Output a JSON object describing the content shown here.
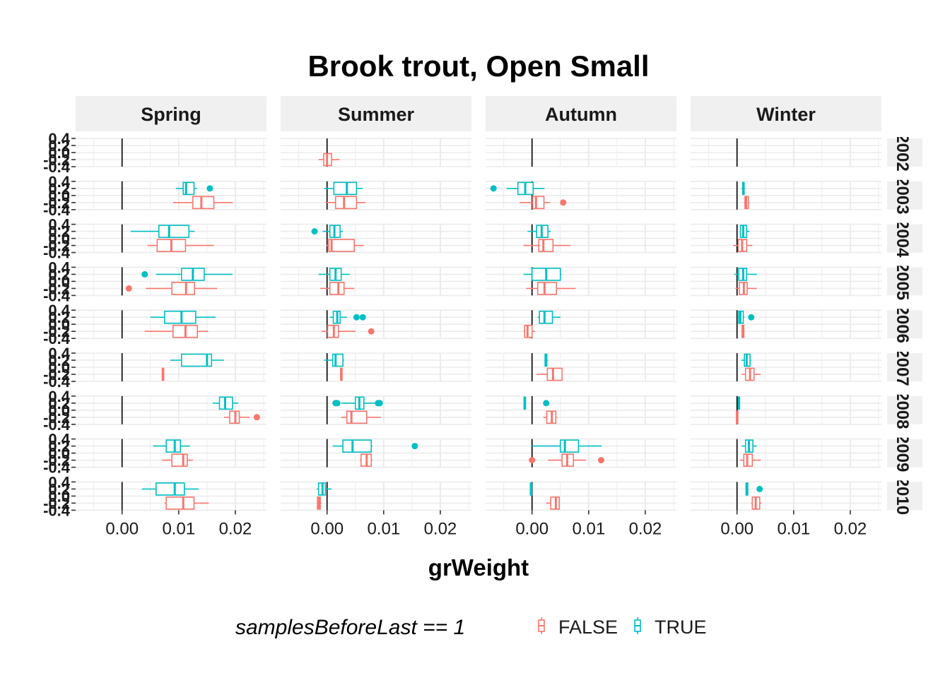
{
  "colors": {
    "false": "#F8766D",
    "true": "#00BFC4",
    "strip": "#F0F0F0",
    "grid": "#EBEBEB"
  },
  "chart_data": {
    "type": "boxplot",
    "title": "Brook trout, Open Small",
    "xlabel": "grWeight",
    "ylabel": "",
    "xlim": [
      -0.0082,
      0.0255
    ],
    "ylim": [
      -0.4,
      0.4
    ],
    "x_ticks": [
      0.0,
      0.01,
      0.02
    ],
    "x_tick_labels": [
      "0.00",
      "0.01",
      "0.02"
    ],
    "y_tick_labels": [
      "0.4",
      "0.2",
      "0.0",
      "-0.2",
      "-0.4"
    ],
    "facet_cols": [
      "Spring",
      "Summer",
      "Autumn",
      "Winter"
    ],
    "facet_rows": [
      "2002",
      "2003",
      "2004",
      "2005",
      "2006",
      "2007",
      "2008",
      "2009",
      "2010"
    ],
    "legend": {
      "title": "samplesBeforeLast == 1",
      "position": "bottom",
      "items": [
        {
          "key": "false",
          "label": "FALSE"
        },
        {
          "key": "true",
          "label": "TRUE"
        }
      ]
    },
    "panels": [
      {
        "row": 0,
        "col": 1,
        "series": "false",
        "stats": [
          -0.0015,
          -0.0006,
          0.0,
          0.0008,
          0.0022
        ],
        "outliers": []
      },
      {
        "row": 1,
        "col": 0,
        "series": "true",
        "stats": [
          0.0095,
          0.0108,
          0.0113,
          0.0127,
          0.0132
        ],
        "outliers": [
          0.0155
        ]
      },
      {
        "row": 1,
        "col": 0,
        "series": "false",
        "stats": [
          0.009,
          0.0125,
          0.014,
          0.0162,
          0.0195
        ],
        "outliers": []
      },
      {
        "row": 1,
        "col": 1,
        "series": "true",
        "stats": [
          -0.0005,
          0.0012,
          0.0035,
          0.0052,
          0.0063
        ],
        "outliers": []
      },
      {
        "row": 1,
        "col": 1,
        "series": "false",
        "stats": [
          -0.0003,
          0.0015,
          0.003,
          0.0052,
          0.0068
        ],
        "outliers": []
      },
      {
        "row": 1,
        "col": 2,
        "series": "true",
        "stats": [
          -0.0045,
          -0.0025,
          -0.0012,
          0.0002,
          0.0022
        ],
        "outliers": [
          -0.0068
        ]
      },
      {
        "row": 1,
        "col": 2,
        "series": "false",
        "stats": [
          -0.0022,
          0.0001,
          0.0007,
          0.0021,
          0.0032
        ],
        "outliers": [
          0.0055
        ]
      },
      {
        "row": 1,
        "col": 3,
        "series": "true",
        "stats": [
          0.0008,
          0.001,
          0.0011,
          0.0012,
          0.0014
        ],
        "outliers": []
      },
      {
        "row": 1,
        "col": 3,
        "series": "false",
        "stats": [
          0.0012,
          0.0014,
          0.0016,
          0.002,
          0.0022
        ],
        "outliers": []
      },
      {
        "row": 2,
        "col": 0,
        "series": "true",
        "stats": [
          0.0015,
          0.0065,
          0.0083,
          0.0118,
          0.0128
        ],
        "outliers": []
      },
      {
        "row": 2,
        "col": 0,
        "series": "false",
        "stats": [
          0.0045,
          0.0062,
          0.0087,
          0.0112,
          0.0162
        ],
        "outliers": []
      },
      {
        "row": 2,
        "col": 1,
        "series": "true",
        "stats": [
          -0.0008,
          0.0005,
          0.0013,
          0.0023,
          0.0028
        ],
        "outliers": [
          -0.0022
        ]
      },
      {
        "row": 2,
        "col": 1,
        "series": "false",
        "stats": [
          -0.0001,
          0.0003,
          0.0008,
          0.0048,
          0.0065
        ],
        "outliers": []
      },
      {
        "row": 2,
        "col": 2,
        "series": "true",
        "stats": [
          -0.0008,
          0.0008,
          0.0017,
          0.0028,
          0.0033
        ],
        "outliers": []
      },
      {
        "row": 2,
        "col": 2,
        "series": "false",
        "stats": [
          -0.0015,
          0.0012,
          0.002,
          0.0037,
          0.0068
        ],
        "outliers": []
      },
      {
        "row": 2,
        "col": 3,
        "series": "true",
        "stats": [
          0.0005,
          0.0006,
          0.0011,
          0.0017,
          0.0022
        ],
        "outliers": []
      },
      {
        "row": 2,
        "col": 3,
        "series": "false",
        "stats": [
          -0.0007,
          0.0002,
          0.0009,
          0.0017,
          0.0027
        ],
        "outliers": []
      },
      {
        "row": 3,
        "col": 0,
        "series": "true",
        "stats": [
          0.006,
          0.0105,
          0.0125,
          0.0145,
          0.0195
        ],
        "outliers": [
          0.004
        ]
      },
      {
        "row": 3,
        "col": 0,
        "series": "false",
        "stats": [
          0.0042,
          0.0088,
          0.0113,
          0.0128,
          0.0168
        ],
        "outliers": [
          0.0012
        ]
      },
      {
        "row": 3,
        "col": 1,
        "series": "true",
        "stats": [
          -0.0015,
          0.0005,
          0.0015,
          0.0025,
          0.004
        ],
        "outliers": []
      },
      {
        "row": 3,
        "col": 1,
        "series": "false",
        "stats": [
          -0.0012,
          0.0005,
          0.002,
          0.003,
          0.0048
        ],
        "outliers": []
      },
      {
        "row": 3,
        "col": 2,
        "series": "true",
        "stats": [
          -0.0015,
          0.0,
          0.0025,
          0.005,
          0.0052
        ],
        "outliers": []
      },
      {
        "row": 3,
        "col": 2,
        "series": "false",
        "stats": [
          -0.001,
          0.001,
          0.0022,
          0.0043,
          0.0077
        ],
        "outliers": []
      },
      {
        "row": 3,
        "col": 3,
        "series": "true",
        "stats": [
          -0.0005,
          0.0003,
          0.0011,
          0.0017,
          0.0035
        ],
        "outliers": []
      },
      {
        "row": 3,
        "col": 3,
        "series": "false",
        "stats": [
          -0.0003,
          0.0004,
          0.0012,
          0.0018,
          0.0035
        ],
        "outliers": []
      },
      {
        "row": 4,
        "col": 0,
        "series": "true",
        "stats": [
          0.005,
          0.0075,
          0.0105,
          0.013,
          0.0165
        ],
        "outliers": []
      },
      {
        "row": 4,
        "col": 0,
        "series": "false",
        "stats": [
          0.004,
          0.009,
          0.0112,
          0.0133,
          0.0152
        ],
        "outliers": []
      },
      {
        "row": 4,
        "col": 1,
        "series": "true",
        "stats": [
          0.0005,
          0.0011,
          0.0018,
          0.0023,
          0.0035
        ],
        "outliers": [
          0.0052,
          0.0063
        ]
      },
      {
        "row": 4,
        "col": 1,
        "series": "false",
        "stats": [
          -0.001,
          0.0001,
          0.0012,
          0.002,
          0.005
        ],
        "outliers": [
          0.0078
        ]
      },
      {
        "row": 4,
        "col": 2,
        "series": "true",
        "stats": [
          0.001,
          0.0013,
          0.0022,
          0.0036,
          0.005
        ],
        "outliers": []
      },
      {
        "row": 4,
        "col": 2,
        "series": "false",
        "stats": [
          -0.0015,
          -0.0013,
          -0.0008,
          0.0,
          0.0005
        ],
        "outliers": []
      },
      {
        "row": 4,
        "col": 3,
        "series": "true",
        "stats": [
          0.0002,
          0.0003,
          0.0006,
          0.0011,
          0.0013
        ],
        "outliers": [
          0.0025
        ]
      },
      {
        "row": 4,
        "col": 3,
        "series": "false",
        "stats": [
          0.0008,
          0.0009,
          0.001,
          0.0012,
          0.0013
        ],
        "outliers": []
      },
      {
        "row": 5,
        "col": 0,
        "series": "true",
        "stats": [
          0.0085,
          0.0105,
          0.015,
          0.0158,
          0.018
        ],
        "outliers": []
      },
      {
        "row": 5,
        "col": 0,
        "series": "false",
        "stats": [
          0.007,
          0.0071,
          0.0072,
          0.0073,
          0.0074
        ],
        "outliers": []
      },
      {
        "row": 5,
        "col": 1,
        "series": "true",
        "stats": [
          -0.0005,
          0.001,
          0.0015,
          0.0028,
          0.003
        ],
        "outliers": []
      },
      {
        "row": 5,
        "col": 1,
        "series": "false",
        "stats": [
          0.0023,
          0.0024,
          0.0025,
          0.0026,
          0.0027
        ],
        "outliers": []
      },
      {
        "row": 5,
        "col": 2,
        "series": "true",
        "stats": [
          0.0022,
          0.0023,
          0.0025,
          0.0026,
          0.0028
        ],
        "outliers": []
      },
      {
        "row": 5,
        "col": 2,
        "series": "false",
        "stats": [
          0.0008,
          0.0027,
          0.0037,
          0.0053,
          0.0054
        ],
        "outliers": []
      },
      {
        "row": 5,
        "col": 3,
        "series": "true",
        "stats": [
          0.0008,
          0.0013,
          0.0017,
          0.0023,
          0.0025
        ],
        "outliers": []
      },
      {
        "row": 5,
        "col": 3,
        "series": "false",
        "stats": [
          0.0008,
          0.0015,
          0.0023,
          0.003,
          0.0042
        ],
        "outliers": []
      },
      {
        "row": 6,
        "col": 0,
        "series": "true",
        "stats": [
          0.016,
          0.0172,
          0.0182,
          0.0195,
          0.0205
        ],
        "outliers": []
      },
      {
        "row": 6,
        "col": 0,
        "series": "false",
        "stats": [
          0.018,
          0.019,
          0.02,
          0.0207,
          0.0225
        ],
        "outliers": [
          0.0238
        ]
      },
      {
        "row": 6,
        "col": 1,
        "series": "true",
        "stats": [
          0.0025,
          0.005,
          0.0057,
          0.0065,
          0.0085
        ],
        "outliers": [
          0.0015,
          0.0018,
          0.009,
          0.0093
        ]
      },
      {
        "row": 6,
        "col": 1,
        "series": "false",
        "stats": [
          0.0025,
          0.0035,
          0.0043,
          0.007,
          0.0095
        ],
        "outliers": []
      },
      {
        "row": 6,
        "col": 2,
        "series": "true",
        "stats": [
          -0.0015,
          -0.0014,
          -0.0013,
          -0.0012,
          -0.0011
        ],
        "outliers": [
          0.0025
        ]
      },
      {
        "row": 6,
        "col": 2,
        "series": "false",
        "stats": [
          0.002,
          0.0026,
          0.0035,
          0.0042,
          0.0044
        ],
        "outliers": []
      },
      {
        "row": 6,
        "col": 3,
        "series": "true",
        "stats": [
          0.0002,
          0.0002,
          0.0003,
          0.0004,
          0.0004
        ],
        "outliers": []
      },
      {
        "row": 6,
        "col": 3,
        "series": "false",
        "stats": [
          -0.0001,
          -0.0001,
          0.0,
          0.0001,
          0.0001
        ],
        "outliers": []
      },
      {
        "row": 7,
        "col": 0,
        "series": "true",
        "stats": [
          0.0055,
          0.0078,
          0.0093,
          0.0103,
          0.012
        ],
        "outliers": []
      },
      {
        "row": 7,
        "col": 0,
        "series": "false",
        "stats": [
          0.007,
          0.0088,
          0.0108,
          0.0115,
          0.0125
        ],
        "outliers": []
      },
      {
        "row": 7,
        "col": 1,
        "series": "true",
        "stats": [
          0.001,
          0.0028,
          0.0045,
          0.0078,
          0.008
        ],
        "outliers": [
          0.0155
        ]
      },
      {
        "row": 7,
        "col": 1,
        "series": "false",
        "stats": [
          0.0058,
          0.006,
          0.007,
          0.0078,
          0.008
        ],
        "outliers": []
      },
      {
        "row": 7,
        "col": 2,
        "series": "true",
        "stats": [
          0.0,
          0.005,
          0.0058,
          0.0082,
          0.0123
        ],
        "outliers": []
      },
      {
        "row": 7,
        "col": 2,
        "series": "false",
        "stats": [
          0.0028,
          0.0053,
          0.0062,
          0.0073,
          0.0095
        ],
        "outliers": [
          0.0,
          0.0122
        ]
      },
      {
        "row": 7,
        "col": 3,
        "series": "true",
        "stats": [
          0.0008,
          0.0015,
          0.0021,
          0.0028,
          0.0035
        ],
        "outliers": []
      },
      {
        "row": 7,
        "col": 3,
        "series": "false",
        "stats": [
          0.0005,
          0.0012,
          0.0018,
          0.0027,
          0.0042
        ],
        "outliers": []
      },
      {
        "row": 8,
        "col": 0,
        "series": "true",
        "stats": [
          0.0035,
          0.006,
          0.0093,
          0.011,
          0.0135
        ],
        "outliers": []
      },
      {
        "row": 8,
        "col": 0,
        "series": "false",
        "stats": [
          0.0075,
          0.0078,
          0.0108,
          0.0127,
          0.0153
        ],
        "outliers": []
      },
      {
        "row": 8,
        "col": 1,
        "series": "true",
        "stats": [
          -0.0018,
          -0.0015,
          -0.0008,
          -0.0003,
          0.0008
        ],
        "outliers": []
      },
      {
        "row": 8,
        "col": 1,
        "series": "false",
        "stats": [
          -0.0018,
          -0.0017,
          -0.0014,
          -0.0012,
          -0.001
        ],
        "outliers": []
      },
      {
        "row": 8,
        "col": 2,
        "series": "true",
        "stats": [
          -0.0004,
          -0.0003,
          -0.0002,
          -0.0001,
          0.0
        ],
        "outliers": []
      },
      {
        "row": 8,
        "col": 2,
        "series": "false",
        "stats": [
          0.0025,
          0.0033,
          0.0042,
          0.0048,
          0.0049
        ],
        "outliers": []
      },
      {
        "row": 8,
        "col": 3,
        "series": "true",
        "stats": [
          0.0015,
          0.0016,
          0.0017,
          0.0019,
          0.002
        ],
        "outliers": [
          0.004
        ]
      },
      {
        "row": 8,
        "col": 3,
        "series": "false",
        "stats": [
          0.0025,
          0.0027,
          0.0033,
          0.004,
          0.0043
        ],
        "outliers": []
      }
    ]
  }
}
